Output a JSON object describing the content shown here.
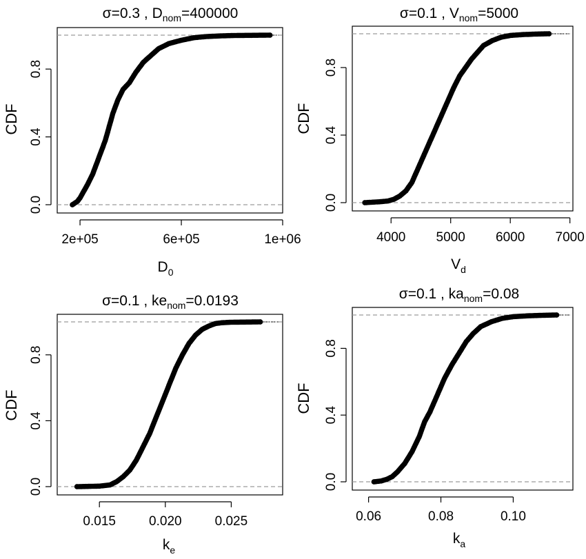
{
  "chart_data": [
    {
      "type": "scatter",
      "subtype": "ecdf",
      "title_parts": {
        "prefix": "σ=0.3 , D",
        "sub": "nom",
        "suffix": "=400000"
      },
      "xlabel": {
        "main": "D",
        "sub": "0"
      },
      "ylabel": "CDF",
      "xlim": [
        110000,
        1000000
      ],
      "ylim": [
        0,
        1
      ],
      "xticks": [
        200000,
        600000,
        1000000
      ],
      "xtick_labels": [
        "2e+05",
        "6e+05",
        "1e+06"
      ],
      "yticks": [
        0,
        0.4,
        0.8
      ],
      "ytick_labels": [
        "0.0",
        "0.4",
        "0.8"
      ],
      "reference_lines": [
        0,
        1
      ],
      "cdf_points": [
        [
          170000,
          0
        ],
        [
          190000,
          0.02
        ],
        [
          200000,
          0.04
        ],
        [
          215000,
          0.08
        ],
        [
          230000,
          0.12
        ],
        [
          250000,
          0.18
        ],
        [
          270000,
          0.26
        ],
        [
          285000,
          0.32
        ],
        [
          300000,
          0.38
        ],
        [
          315000,
          0.46
        ],
        [
          330000,
          0.54
        ],
        [
          350000,
          0.62
        ],
        [
          370000,
          0.68
        ],
        [
          395000,
          0.72
        ],
        [
          420000,
          0.78
        ],
        [
          450000,
          0.84
        ],
        [
          480000,
          0.88
        ],
        [
          510000,
          0.92
        ],
        [
          550000,
          0.95
        ],
        [
          600000,
          0.97
        ],
        [
          650000,
          0.985
        ],
        [
          700000,
          0.992
        ],
        [
          760000,
          0.996
        ],
        [
          810000,
          0.998
        ],
        [
          950000,
          1.0
        ]
      ]
    },
    {
      "type": "scatter",
      "subtype": "ecdf",
      "title_parts": {
        "prefix": "σ=0.1 , V",
        "sub": "nom",
        "suffix": "=5000"
      },
      "xlabel": {
        "main": "V",
        "sub": "d"
      },
      "ylabel": "CDF",
      "xlim": [
        3350,
        7050
      ],
      "ylim": [
        0,
        1
      ],
      "xticks": [
        4000,
        5000,
        6000,
        7000
      ],
      "xtick_labels": [
        "4000",
        "5000",
        "6000",
        "7000"
      ],
      "yticks": [
        0,
        0.4,
        0.8
      ],
      "ytick_labels": [
        "0.0",
        "0.4",
        "0.8"
      ],
      "reference_lines": [
        0,
        1
      ],
      "cdf_points": [
        [
          3560,
          0
        ],
        [
          3800,
          0.005
        ],
        [
          3950,
          0.01
        ],
        [
          4050,
          0.02
        ],
        [
          4150,
          0.04
        ],
        [
          4250,
          0.07
        ],
        [
          4350,
          0.12
        ],
        [
          4450,
          0.2
        ],
        [
          4550,
          0.28
        ],
        [
          4650,
          0.36
        ],
        [
          4750,
          0.44
        ],
        [
          4850,
          0.52
        ],
        [
          4950,
          0.6
        ],
        [
          5050,
          0.68
        ],
        [
          5150,
          0.75
        ],
        [
          5250,
          0.8
        ],
        [
          5350,
          0.85
        ],
        [
          5450,
          0.89
        ],
        [
          5550,
          0.93
        ],
        [
          5700,
          0.96
        ],
        [
          5850,
          0.98
        ],
        [
          6000,
          0.99
        ],
        [
          6200,
          0.995
        ],
        [
          6400,
          0.998
        ],
        [
          6650,
          1.0
        ]
      ]
    },
    {
      "type": "scatter",
      "subtype": "ecdf",
      "title_parts": {
        "prefix": "σ=0.1 , ke",
        "sub": "nom",
        "suffix": "=0.0193"
      },
      "xlabel": {
        "main": "k",
        "sub": "e"
      },
      "ylabel": "CDF",
      "xlim": [
        0.0118,
        0.0289
      ],
      "ylim": [
        0,
        1
      ],
      "xticks": [
        0.015,
        0.02,
        0.025
      ],
      "xtick_labels": [
        "0.015",
        "0.020",
        "0.025"
      ],
      "yticks": [
        0,
        0.4,
        0.8
      ],
      "ytick_labels": [
        "0.0",
        "0.4",
        "0.8"
      ],
      "reference_lines": [
        0,
        1
      ],
      "cdf_points": [
        [
          0.0133,
          0
        ],
        [
          0.015,
          0.003
        ],
        [
          0.0158,
          0.01
        ],
        [
          0.0163,
          0.03
        ],
        [
          0.0168,
          0.06
        ],
        [
          0.0173,
          0.1
        ],
        [
          0.0178,
          0.16
        ],
        [
          0.0183,
          0.24
        ],
        [
          0.0188,
          0.32
        ],
        [
          0.0193,
          0.42
        ],
        [
          0.0198,
          0.52
        ],
        [
          0.0203,
          0.62
        ],
        [
          0.0208,
          0.72
        ],
        [
          0.0213,
          0.8
        ],
        [
          0.0218,
          0.87
        ],
        [
          0.0223,
          0.92
        ],
        [
          0.0228,
          0.955
        ],
        [
          0.0233,
          0.975
        ],
        [
          0.0238,
          0.99
        ],
        [
          0.0243,
          0.995
        ],
        [
          0.025,
          0.998
        ],
        [
          0.0272,
          1.0
        ]
      ]
    },
    {
      "type": "scatter",
      "subtype": "ecdf",
      "title_parts": {
        "prefix": "σ=0.1 , ka",
        "sub": "nom",
        "suffix": "=0.08"
      },
      "xlabel": {
        "main": "k",
        "sub": "a"
      },
      "ylabel": "CDF",
      "xlim": [
        0.0555,
        0.1165
      ],
      "ylim": [
        0,
        1
      ],
      "xticks": [
        0.06,
        0.08,
        0.1
      ],
      "xtick_labels": [
        "0.06",
        "0.08",
        "0.10"
      ],
      "yticks": [
        0,
        0.4,
        0.8
      ],
      "ytick_labels": [
        "0.0",
        "0.4",
        "0.8"
      ],
      "reference_lines": [
        0,
        1
      ],
      "cdf_points": [
        [
          0.0615,
          0
        ],
        [
          0.0635,
          0.005
        ],
        [
          0.065,
          0.015
        ],
        [
          0.0665,
          0.03
        ],
        [
          0.068,
          0.06
        ],
        [
          0.07,
          0.11
        ],
        [
          0.072,
          0.18
        ],
        [
          0.074,
          0.27
        ],
        [
          0.0755,
          0.36
        ],
        [
          0.077,
          0.42
        ],
        [
          0.079,
          0.52
        ],
        [
          0.081,
          0.62
        ],
        [
          0.083,
          0.7
        ],
        [
          0.085,
          0.77
        ],
        [
          0.087,
          0.84
        ],
        [
          0.089,
          0.89
        ],
        [
          0.091,
          0.93
        ],
        [
          0.094,
          0.96
        ],
        [
          0.097,
          0.98
        ],
        [
          0.1,
          0.99
        ],
        [
          0.104,
          0.995
        ],
        [
          0.108,
          0.998
        ],
        [
          0.112,
          1.0
        ]
      ]
    }
  ]
}
